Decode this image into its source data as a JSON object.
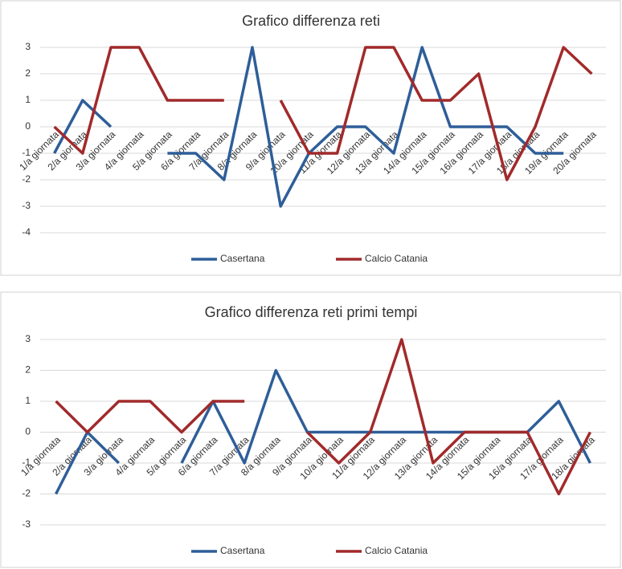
{
  "chart_data": [
    {
      "type": "line",
      "title": "Grafico differenza reti",
      "categories": [
        "1/a giornata",
        "2/a giornata",
        "3/a giornata",
        "4/a giornata",
        "5/a giornata",
        "6/a giornata",
        "7/a giornata",
        "8/a giornata",
        "9/a giornata",
        "10/a giornata",
        "11/a giornata",
        "12/a giornata",
        "13/a giornata",
        "14/a giornata",
        "15/a giornata",
        "16/a giornata",
        "17/a giornata",
        "18/a giornata",
        "19/a giornata",
        "20/a giornata"
      ],
      "series": [
        {
          "name": "Casertana",
          "color": "#2e5e99",
          "values": [
            -1,
            1,
            0,
            null,
            -1,
            -1,
            -2,
            3,
            -3,
            -1,
            0,
            0,
            -1,
            3,
            0,
            0,
            0,
            -1,
            -1,
            null
          ]
        },
        {
          "name": "Calcio Catania",
          "color": "#a12a2b",
          "values": [
            0,
            -1,
            3,
            3,
            1,
            1,
            1,
            null,
            1,
            -1,
            -1,
            3,
            3,
            1,
            1,
            2,
            -2,
            0,
            3,
            2
          ]
        }
      ],
      "ylim": [
        -4,
        3
      ],
      "yticks": [
        -4,
        -3,
        -2,
        -1,
        0,
        1,
        2,
        3
      ],
      "grid": true,
      "legend": "bottom"
    },
    {
      "type": "line",
      "title": "Grafico differenza reti primi tempi",
      "categories": [
        "1/a giornata",
        "2/a giornata",
        "3/a giornata",
        "4/a giornata",
        "5/a giornata",
        "6/a giornata",
        "7/a giornata",
        "8/a giornata",
        "9/a giornata",
        "10/a giornata",
        "11/a giornata",
        "12/a giornata",
        "13/a giornata",
        "14/a giornata",
        "15/a giornata",
        "16/a giornata",
        "17/a giornata",
        "18/a giornata"
      ],
      "series": [
        {
          "name": "Casertana",
          "color": "#2e5e99",
          "values": [
            -2,
            0,
            -1,
            null,
            -1,
            1,
            -1,
            2,
            0,
            0,
            0,
            0,
            0,
            0,
            0,
            0,
            1,
            -1
          ]
        },
        {
          "name": "Calcio Catania",
          "color": "#a12a2b",
          "values": [
            1,
            0,
            1,
            1,
            0,
            1,
            1,
            null,
            0,
            -1,
            0,
            3,
            -1,
            0,
            0,
            0,
            -2,
            0
          ]
        }
      ],
      "ylim": [
        -3,
        3
      ],
      "yticks": [
        -3,
        -2,
        -1,
        0,
        1,
        2,
        3
      ],
      "grid": true,
      "legend": "bottom"
    }
  ]
}
